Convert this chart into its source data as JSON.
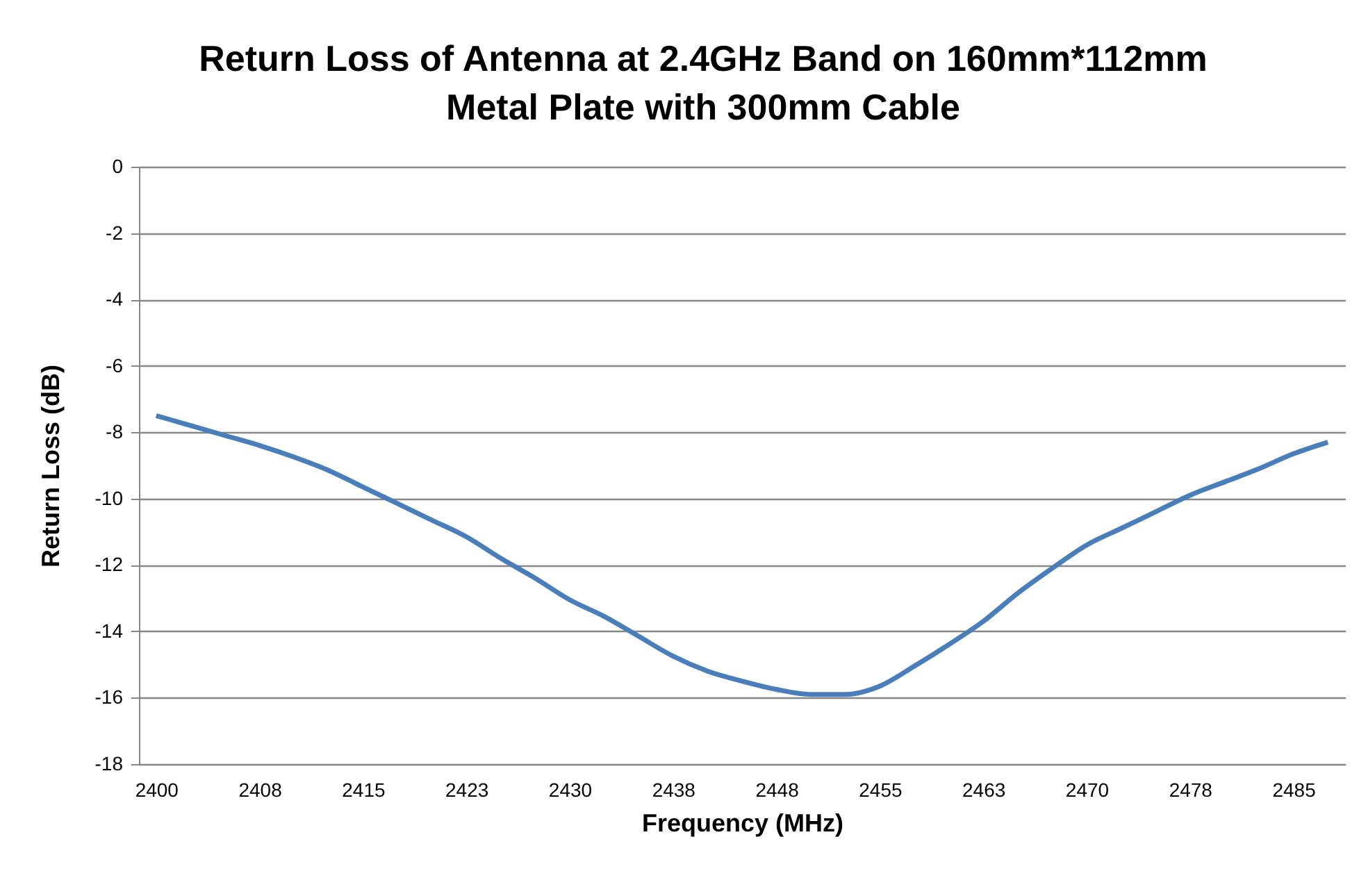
{
  "chart_data": {
    "type": "line",
    "title": "Return Loss of Antenna at 2.4GHz Band on 160mm*112mm\nMetal Plate with 300mm Cable",
    "xlabel": "Frequency  (MHz)",
    "ylabel": "Return Loss (dB)",
    "categories": [
      "2400",
      null,
      null,
      "2408",
      null,
      null,
      "2415",
      null,
      null,
      "2423",
      null,
      null,
      "2430",
      null,
      null,
      "2438",
      null,
      null,
      "2448",
      null,
      null,
      "2455",
      null,
      null,
      "2463",
      null,
      null,
      "2470",
      null,
      null,
      "2478",
      null,
      null,
      "2485",
      null
    ],
    "series": [
      {
        "color": "#4a7ebb",
        "values": [
          -7.5,
          -7.8,
          -8.1,
          -8.4,
          -8.75,
          -9.15,
          -9.65,
          -10.15,
          -10.65,
          -11.15,
          -11.8,
          -12.4,
          -13.05,
          -13.55,
          -14.15,
          -14.75,
          -15.2,
          -15.5,
          -15.75,
          -15.9,
          -15.9,
          -15.65,
          -15.05,
          -14.4,
          -13.7,
          -12.85,
          -12.1,
          -11.4,
          -10.9,
          -10.4,
          -9.9,
          -9.5,
          -9.1,
          -8.65,
          -8.3
        ]
      }
    ],
    "ylim": [
      -18,
      0
    ],
    "yticks": [
      -18,
      -16,
      -14,
      -12,
      -10,
      -8,
      -6,
      -4,
      -2,
      0
    ],
    "grid": "y",
    "marker": "none",
    "line_style": "solid"
  }
}
